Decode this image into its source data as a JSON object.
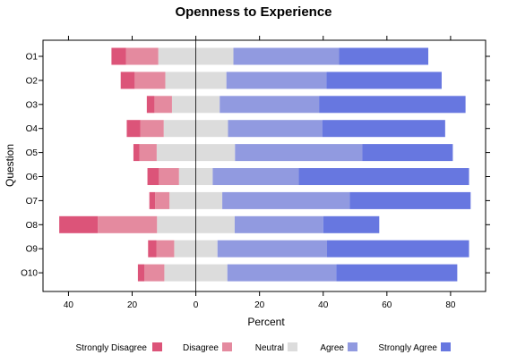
{
  "chart_data": {
    "type": "bar",
    "subtype": "diverging-stacked-horizontal",
    "title": "Openness to Experience",
    "xlabel": "Percent",
    "ylabel": "Question",
    "xlim": [
      -48,
      91
    ],
    "x_ticks": [
      -40,
      -20,
      0,
      20,
      40,
      60,
      80
    ],
    "x_tick_labels": [
      "40",
      "20",
      "0",
      "20",
      "40",
      "60",
      "80"
    ],
    "categories": [
      "O1",
      "O2",
      "O3",
      "O4",
      "O5",
      "O6",
      "O7",
      "O8",
      "O9",
      "O10"
    ],
    "series": [
      {
        "name": "Strongly Disagree",
        "color": "#dc5479",
        "values": [
          4.6,
          4.4,
          2.4,
          4.3,
          1.9,
          3.6,
          1.8,
          12.1,
          2.6,
          2.0
        ]
      },
      {
        "name": "Disagree",
        "color": "#e48a9f",
        "values": [
          10.1,
          9.6,
          5.5,
          7.3,
          5.4,
          6.3,
          4.5,
          18.6,
          5.6,
          6.3
        ]
      },
      {
        "name": "Neutral",
        "color": "#dcdcdc",
        "values": [
          23.6,
          19.2,
          15.0,
          20.2,
          24.6,
          10.6,
          16.6,
          24.4,
          13.6,
          19.8
        ]
      },
      {
        "name": "Agree",
        "color": "#919ae0",
        "values": [
          33.2,
          31.4,
          31.2,
          29.6,
          40.0,
          27.0,
          40.0,
          27.8,
          34.4,
          34.2
        ]
      },
      {
        "name": "Strongly Agree",
        "color": "#6777e0",
        "values": [
          28.0,
          36.2,
          46.0,
          38.6,
          28.4,
          53.5,
          38.0,
          17.6,
          44.6,
          38.0
        ]
      }
    ],
    "legend_position": "bottom",
    "grid": false
  }
}
